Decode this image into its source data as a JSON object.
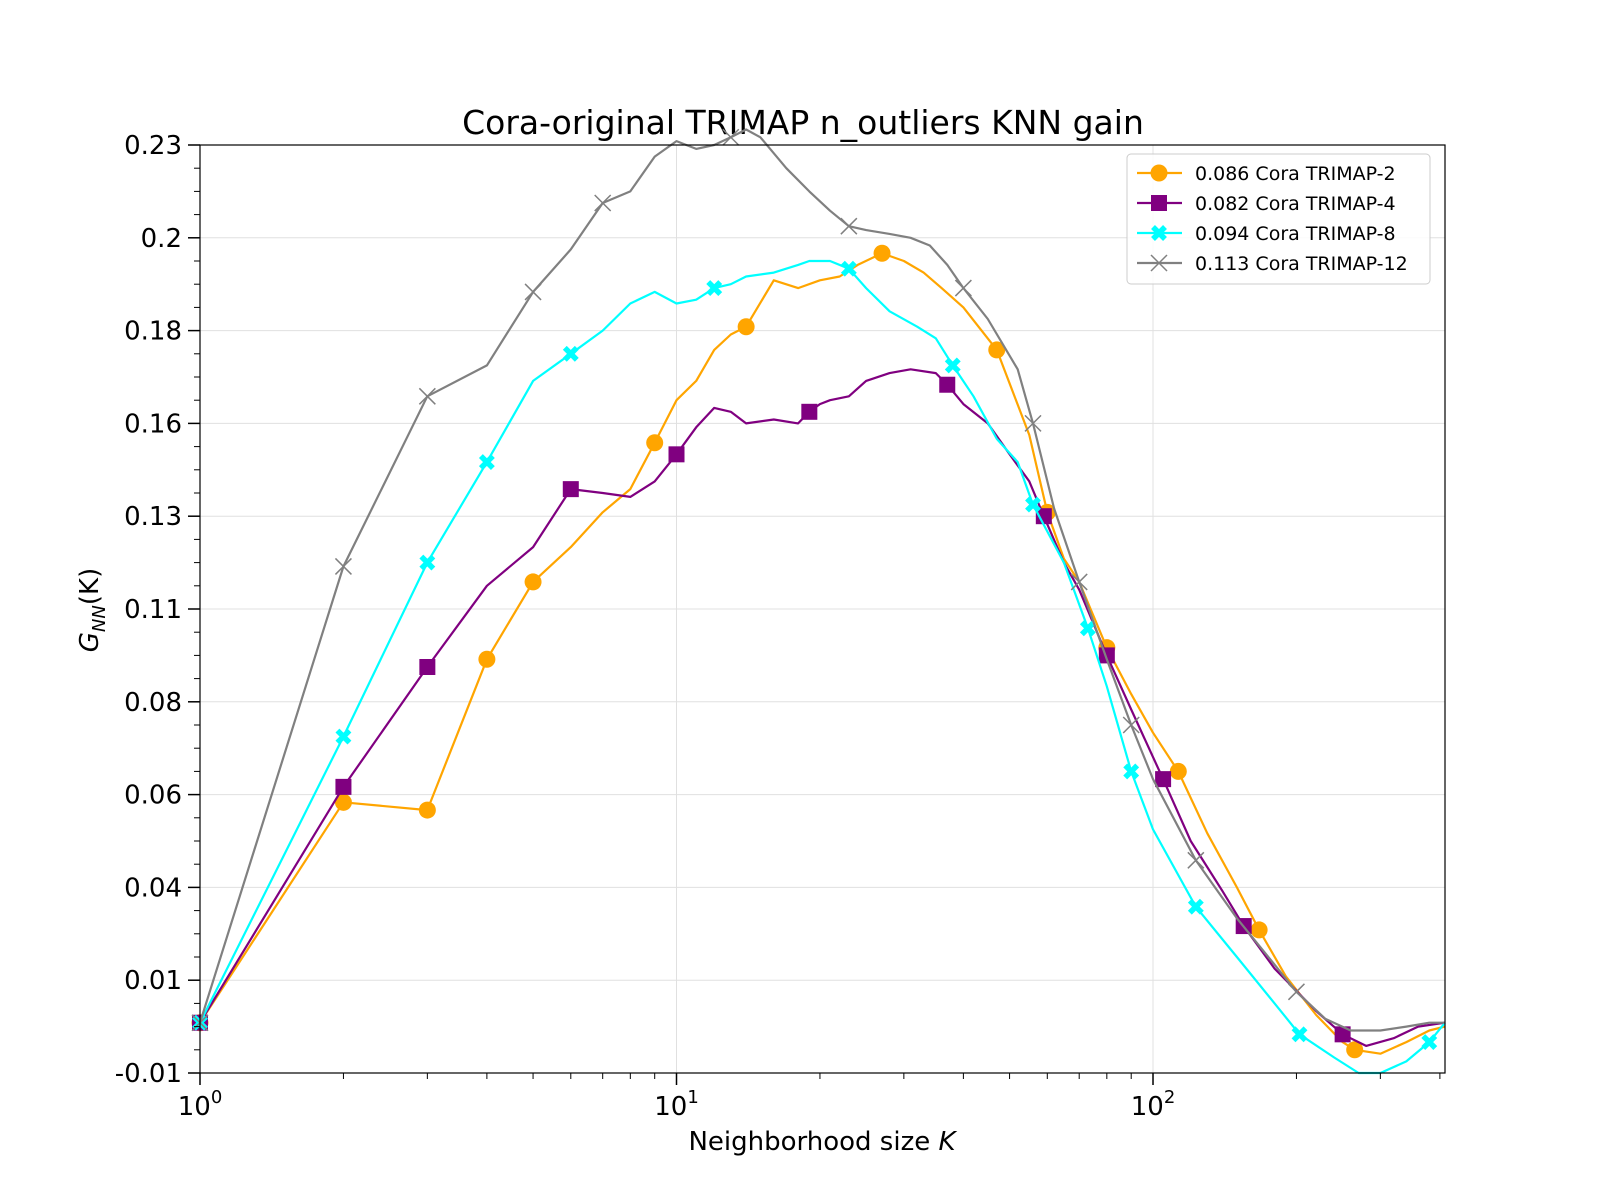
{
  "chart_data": {
    "type": "line",
    "title": "Cora-original TRIMAP n_outliers KNN gain",
    "xlabel_text": "Neighborhood size ",
    "xlabel_italic": "K",
    "ylabel_main": "G",
    "ylabel_sub": "NN",
    "ylabel_suffix": "(K)",
    "xscale": "log",
    "xlim": [
      1,
      410
    ],
    "ylim": [
      -0.01,
      0.23
    ],
    "grid": true,
    "legend_position": "upper right",
    "x_ticks": [
      {
        "value": 1,
        "base": "10",
        "exp": "0"
      },
      {
        "value": 10,
        "base": "10",
        "exp": "1"
      },
      {
        "value": 100,
        "base": "10",
        "exp": "2"
      }
    ],
    "y_ticks": [
      {
        "value": -0.01,
        "label": "-0.01"
      },
      {
        "value": 0.014,
        "label": "0.01"
      },
      {
        "value": 0.038,
        "label": "0.04"
      },
      {
        "value": 0.062,
        "label": "0.06"
      },
      {
        "value": 0.086,
        "label": "0.08"
      },
      {
        "value": 0.11,
        "label": "0.11"
      },
      {
        "value": 0.134,
        "label": "0.13"
      },
      {
        "value": 0.158,
        "label": "0.16"
      },
      {
        "value": 0.182,
        "label": "0.18"
      },
      {
        "value": 0.206,
        "label": "0.2"
      },
      {
        "value": 0.23,
        "label": "0.23"
      }
    ],
    "series": [
      {
        "name": "0.086 Cora TRIMAP-2",
        "color": "#ffa500",
        "marker": "circle",
        "points": [
          [
            1,
            0.003
          ],
          [
            2,
            0.06
          ],
          [
            3,
            0.058
          ],
          [
            4,
            0.097
          ],
          [
            5,
            0.117
          ],
          [
            6,
            0.126
          ],
          [
            7,
            0.135
          ],
          [
            8,
            0.141
          ],
          [
            9,
            0.153
          ],
          [
            10,
            0.164
          ],
          [
            11,
            0.169
          ],
          [
            12,
            0.177
          ],
          [
            13,
            0.181
          ],
          [
            14,
            0.183
          ],
          [
            16,
            0.195
          ],
          [
            18,
            0.193
          ],
          [
            20,
            0.195
          ],
          [
            22,
            0.196
          ],
          [
            24,
            0.199
          ],
          [
            27,
            0.202
          ],
          [
            30,
            0.2
          ],
          [
            33,
            0.197
          ],
          [
            36,
            0.193
          ],
          [
            40,
            0.188
          ],
          [
            47,
            0.177
          ],
          [
            55,
            0.155
          ],
          [
            60,
            0.135
          ],
          [
            65,
            0.123
          ],
          [
            70,
            0.117
          ],
          [
            80,
            0.1
          ],
          [
            90,
            0.088
          ],
          [
            100,
            0.078
          ],
          [
            113,
            0.068
          ],
          [
            130,
            0.052
          ],
          [
            150,
            0.038
          ],
          [
            167,
            0.027
          ],
          [
            190,
            0.015
          ],
          [
            220,
            0.005
          ],
          [
            250,
            -0.002
          ],
          [
            265,
            -0.004
          ],
          [
            300,
            -0.005
          ],
          [
            340,
            -0.002
          ],
          [
            380,
            0.001
          ],
          [
            410,
            0.002
          ]
        ],
        "markers_at": [
          1,
          2,
          3,
          4,
          5,
          9,
          14,
          27,
          47,
          60,
          80,
          113,
          167,
          265
        ]
      },
      {
        "name": "0.082 Cora TRIMAP-4",
        "color": "#800080",
        "marker": "square",
        "points": [
          [
            1,
            0.003
          ],
          [
            2,
            0.064
          ],
          [
            3,
            0.095
          ],
          [
            4,
            0.116
          ],
          [
            5,
            0.126
          ],
          [
            6,
            0.141
          ],
          [
            7,
            0.14
          ],
          [
            8,
            0.139
          ],
          [
            9,
            0.143
          ],
          [
            10,
            0.15
          ],
          [
            11,
            0.157
          ],
          [
            12,
            0.162
          ],
          [
            13,
            0.161
          ],
          [
            14,
            0.158
          ],
          [
            16,
            0.159
          ],
          [
            18,
            0.158
          ],
          [
            19,
            0.161
          ],
          [
            20,
            0.163
          ],
          [
            21,
            0.164
          ],
          [
            23,
            0.165
          ],
          [
            25,
            0.169
          ],
          [
            28,
            0.171
          ],
          [
            31,
            0.172
          ],
          [
            35,
            0.171
          ],
          [
            37,
            0.168
          ],
          [
            40,
            0.163
          ],
          [
            45,
            0.158
          ],
          [
            50,
            0.15
          ],
          [
            55,
            0.143
          ],
          [
            59,
            0.134
          ],
          [
            65,
            0.122
          ],
          [
            70,
            0.115
          ],
          [
            80,
            0.098
          ],
          [
            90,
            0.084
          ],
          [
            105,
            0.066
          ],
          [
            120,
            0.05
          ],
          [
            140,
            0.037
          ],
          [
            155,
            0.028
          ],
          [
            180,
            0.017
          ],
          [
            220,
            0.006
          ],
          [
            250,
            0.0
          ],
          [
            280,
            -0.003
          ],
          [
            320,
            -0.001
          ],
          [
            360,
            0.002
          ],
          [
            410,
            0.003
          ]
        ],
        "markers_at": [
          1,
          2,
          3,
          6,
          10,
          19,
          37,
          59,
          80,
          105,
          155,
          250
        ]
      },
      {
        "name": "0.094 Cora TRIMAP-8",
        "color": "#00ffff",
        "marker": "x-thick",
        "points": [
          [
            1,
            0.003
          ],
          [
            2,
            0.077
          ],
          [
            3,
            0.122
          ],
          [
            4,
            0.148
          ],
          [
            5,
            0.169
          ],
          [
            6,
            0.176
          ],
          [
            7,
            0.182
          ],
          [
            8,
            0.189
          ],
          [
            9,
            0.192
          ],
          [
            10,
            0.189
          ],
          [
            11,
            0.19
          ],
          [
            12,
            0.193
          ],
          [
            13,
            0.194
          ],
          [
            14,
            0.196
          ],
          [
            16,
            0.197
          ],
          [
            18,
            0.199
          ],
          [
            19,
            0.2
          ],
          [
            21,
            0.2
          ],
          [
            23,
            0.198
          ],
          [
            25,
            0.193
          ],
          [
            28,
            0.187
          ],
          [
            32,
            0.183
          ],
          [
            35,
            0.18
          ],
          [
            38,
            0.173
          ],
          [
            42,
            0.165
          ],
          [
            47,
            0.154
          ],
          [
            52,
            0.148
          ],
          [
            56,
            0.137
          ],
          [
            65,
            0.122
          ],
          [
            73,
            0.105
          ],
          [
            80,
            0.09
          ],
          [
            90,
            0.068
          ],
          [
            100,
            0.053
          ],
          [
            123,
            0.033
          ],
          [
            150,
            0.02
          ],
          [
            180,
            0.008
          ],
          [
            203,
            0.0
          ],
          [
            240,
            -0.006
          ],
          [
            270,
            -0.01
          ],
          [
            300,
            -0.01
          ],
          [
            340,
            -0.007
          ],
          [
            380,
            -0.002
          ],
          [
            410,
            0.003
          ]
        ],
        "markers_at": [
          1,
          2,
          3,
          4,
          6,
          12,
          23,
          38,
          56,
          73,
          90,
          123,
          203,
          380
        ]
      },
      {
        "name": "0.113 Cora TRIMAP-12",
        "color": "#808080",
        "marker": "x-thin",
        "points": [
          [
            1,
            0.003
          ],
          [
            2,
            0.121
          ],
          [
            3,
            0.165
          ],
          [
            4,
            0.173
          ],
          [
            5,
            0.192
          ],
          [
            6,
            0.203
          ],
          [
            7,
            0.215
          ],
          [
            8,
            0.218
          ],
          [
            9,
            0.227
          ],
          [
            10,
            0.231
          ],
          [
            11,
            0.229
          ],
          [
            12,
            0.23
          ],
          [
            13,
            0.232
          ],
          [
            14,
            0.234
          ],
          [
            15,
            0.232
          ],
          [
            17,
            0.224
          ],
          [
            19,
            0.218
          ],
          [
            21,
            0.213
          ],
          [
            23,
            0.209
          ],
          [
            25,
            0.208
          ],
          [
            28,
            0.207
          ],
          [
            31,
            0.206
          ],
          [
            34,
            0.204
          ],
          [
            37,
            0.199
          ],
          [
            40,
            0.193
          ],
          [
            45,
            0.185
          ],
          [
            52,
            0.172
          ],
          [
            56,
            0.158
          ],
          [
            62,
            0.136
          ],
          [
            70,
            0.117
          ],
          [
            80,
            0.097
          ],
          [
            90,
            0.08
          ],
          [
            100,
            0.066
          ],
          [
            123,
            0.045
          ],
          [
            150,
            0.03
          ],
          [
            180,
            0.018
          ],
          [
            200,
            0.011
          ],
          [
            230,
            0.004
          ],
          [
            260,
            0.001
          ],
          [
            300,
            0.001
          ],
          [
            340,
            0.002
          ],
          [
            380,
            0.003
          ],
          [
            410,
            0.003
          ]
        ],
        "markers_at": [
          1,
          2,
          3,
          5,
          7,
          13,
          23,
          40,
          56,
          70,
          90,
          123,
          200
        ]
      }
    ]
  }
}
